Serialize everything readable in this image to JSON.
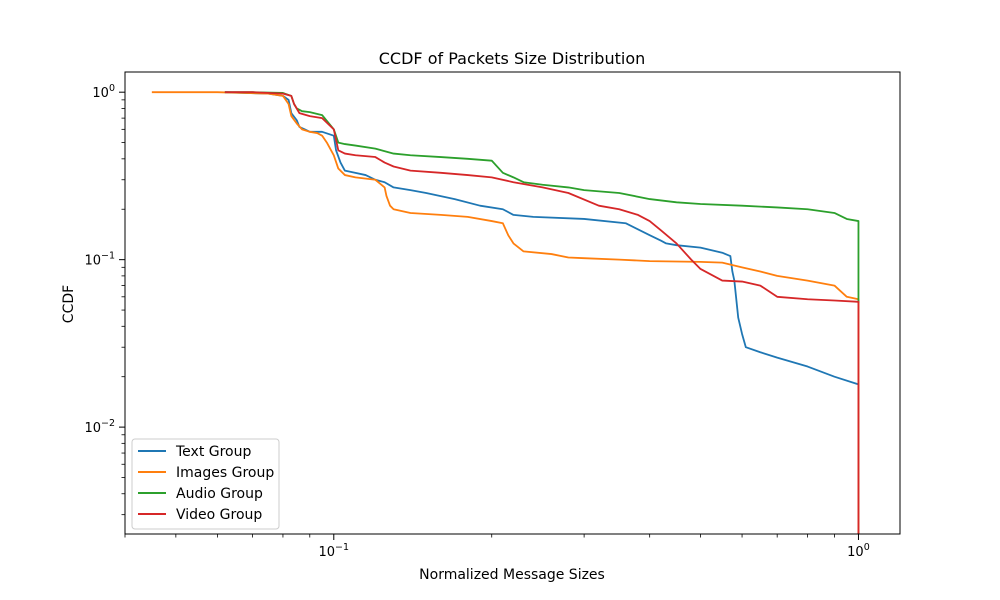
{
  "chart_data": {
    "type": "line",
    "title": "CCDF of Packets Size Distribution",
    "xlabel": "Normalized Message Sizes",
    "ylabel": "CCDF",
    "xscale": "log",
    "yscale": "log",
    "xlim": [
      0.04,
      1.2
    ],
    "ylim": [
      0.0023,
      1.32
    ],
    "grid": false,
    "legend_position": "lower-left",
    "x_ticks": [
      {
        "value": 0.1,
        "base": "10",
        "exp": "−1"
      },
      {
        "value": 1,
        "base": "10",
        "exp": "0"
      }
    ],
    "y_ticks": [
      {
        "value": 0.01,
        "base": "10",
        "exp": "−2"
      },
      {
        "value": 0.1,
        "base": "10",
        "exp": "−1"
      },
      {
        "value": 1,
        "base": "10",
        "exp": "0"
      }
    ],
    "series": [
      {
        "name": "Text Group",
        "color": "#1f77b4",
        "x": [
          0.062,
          0.075,
          0.08,
          0.082,
          0.083,
          0.085,
          0.086,
          0.088,
          0.09,
          0.095,
          0.1,
          0.101,
          0.103,
          0.105,
          0.11,
          0.115,
          0.12,
          0.125,
          0.13,
          0.14,
          0.15,
          0.17,
          0.19,
          0.21,
          0.22,
          0.24,
          0.3,
          0.36,
          0.4,
          0.42,
          0.43,
          0.45,
          0.5,
          0.55,
          0.57,
          0.575,
          0.58,
          0.59,
          0.6,
          0.61,
          0.65,
          0.7,
          0.8,
          0.9,
          1.0,
          1.0,
          1.0
        ],
        "y": [
          1.0,
          0.98,
          0.95,
          0.9,
          0.75,
          0.68,
          0.62,
          0.6,
          0.58,
          0.58,
          0.55,
          0.45,
          0.38,
          0.34,
          0.33,
          0.32,
          0.3,
          0.29,
          0.27,
          0.26,
          0.25,
          0.23,
          0.21,
          0.2,
          0.185,
          0.18,
          0.175,
          0.165,
          0.14,
          0.13,
          0.125,
          0.122,
          0.118,
          0.11,
          0.105,
          0.085,
          0.075,
          0.045,
          0.036,
          0.03,
          0.028,
          0.026,
          0.023,
          0.02,
          0.018,
          0.014,
          0.0023
        ]
      },
      {
        "name": "Images Group",
        "color": "#ff7f0e",
        "x": [
          0.045,
          0.05,
          0.06,
          0.075,
          0.08,
          0.082,
          0.083,
          0.085,
          0.087,
          0.09,
          0.093,
          0.095,
          0.097,
          0.1,
          0.102,
          0.105,
          0.11,
          0.12,
          0.125,
          0.126,
          0.128,
          0.13,
          0.14,
          0.16,
          0.18,
          0.2,
          0.21,
          0.215,
          0.22,
          0.23,
          0.26,
          0.28,
          0.3,
          0.35,
          0.4,
          0.5,
          0.55,
          0.6,
          0.65,
          0.7,
          0.8,
          0.9,
          0.95,
          1.0,
          1.0
        ],
        "y": [
          1.0,
          1.0,
          1.0,
          0.98,
          0.95,
          0.85,
          0.72,
          0.65,
          0.6,
          0.58,
          0.57,
          0.55,
          0.5,
          0.42,
          0.35,
          0.32,
          0.31,
          0.3,
          0.27,
          0.24,
          0.21,
          0.2,
          0.19,
          0.185,
          0.18,
          0.17,
          0.165,
          0.14,
          0.125,
          0.112,
          0.108,
          0.103,
          0.102,
          0.1,
          0.098,
          0.097,
          0.096,
          0.09,
          0.085,
          0.08,
          0.075,
          0.07,
          0.06,
          0.058,
          0.0023
        ]
      },
      {
        "name": "Audio Group",
        "color": "#2ca02c",
        "x": [
          0.062,
          0.07,
          0.08,
          0.083,
          0.084,
          0.085,
          0.087,
          0.09,
          0.095,
          0.1,
          0.102,
          0.105,
          0.11,
          0.12,
          0.13,
          0.14,
          0.16,
          0.18,
          0.2,
          0.21,
          0.22,
          0.23,
          0.25,
          0.28,
          0.3,
          0.35,
          0.4,
          0.45,
          0.5,
          0.6,
          0.7,
          0.8,
          0.9,
          0.95,
          1.0,
          1.0
        ],
        "y": [
          1.0,
          1.0,
          0.99,
          0.95,
          0.85,
          0.8,
          0.77,
          0.76,
          0.73,
          0.6,
          0.5,
          0.49,
          0.48,
          0.46,
          0.43,
          0.42,
          0.41,
          0.4,
          0.39,
          0.33,
          0.31,
          0.29,
          0.28,
          0.27,
          0.26,
          0.25,
          0.23,
          0.22,
          0.215,
          0.21,
          0.205,
          0.2,
          0.19,
          0.175,
          0.17,
          0.055
        ]
      },
      {
        "name": "Video Group",
        "color": "#d62728",
        "x": [
          0.062,
          0.07,
          0.08,
          0.083,
          0.084,
          0.086,
          0.09,
          0.095,
          0.1,
          0.102,
          0.105,
          0.11,
          0.12,
          0.125,
          0.13,
          0.14,
          0.16,
          0.18,
          0.2,
          0.22,
          0.25,
          0.28,
          0.32,
          0.35,
          0.38,
          0.4,
          0.42,
          0.45,
          0.48,
          0.5,
          0.55,
          0.6,
          0.65,
          0.7,
          0.8,
          0.9,
          1.0,
          1.0
        ],
        "y": [
          1.0,
          1.0,
          0.98,
          0.95,
          0.85,
          0.75,
          0.72,
          0.7,
          0.6,
          0.45,
          0.43,
          0.42,
          0.41,
          0.38,
          0.36,
          0.34,
          0.33,
          0.32,
          0.31,
          0.29,
          0.27,
          0.25,
          0.21,
          0.2,
          0.185,
          0.17,
          0.15,
          0.125,
          0.1,
          0.088,
          0.075,
          0.074,
          0.07,
          0.06,
          0.058,
          0.057,
          0.056,
          0.0023
        ]
      }
    ]
  }
}
